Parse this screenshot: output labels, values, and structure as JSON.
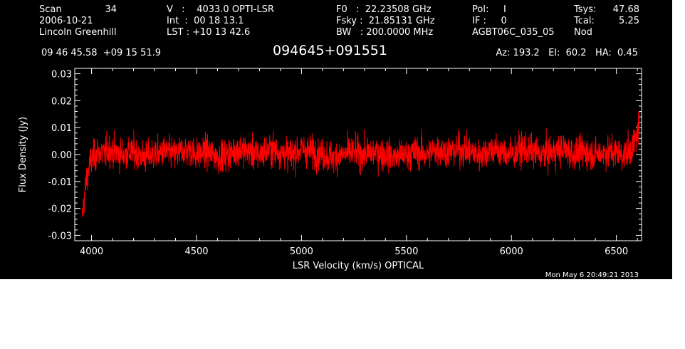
{
  "header": {
    "scan_label": "Scan",
    "scan_value": "34",
    "date": "2006-10-21",
    "observer": "Lincoln Greenhill",
    "velocity": "V   :    4033.0 OPTI-LSR",
    "int_time": "Int  :  00 18 13.1",
    "lst": "LST : +10 13 42.6",
    "f0": "F0   :  22.23508 GHz",
    "fsky": "Fsky :  21.85131 GHz",
    "bw": "BW   : 200.0000 MHz",
    "pol": "Pol:     I",
    "if": "IF :     0",
    "project": "AGBT06C_035_05",
    "tsys_label": "Tsys:",
    "tsys_value": "47.68",
    "tcal_label": "Tcal:",
    "tcal_value": "5.25",
    "nod": "Nod",
    "coords": "09 46 45.58  +09 15 51.9",
    "source": "094645+091551",
    "az_el_ha": "Az: 193.2   El:  60.2   HA:  0.45",
    "timestamp": "Mon May  6 20:49:21 2013"
  },
  "colors": {
    "background": "#000000",
    "axes": "#ffffff",
    "trace": "#ff0000"
  },
  "chart_data": {
    "type": "line",
    "xlabel": "LSR Velocity (km/s) OPTICAL",
    "ylabel": "Flux Density (Jy)",
    "xlim": [
      3920,
      6620
    ],
    "ylim": [
      -0.032,
      0.032
    ],
    "x_ticks": [
      4000,
      4500,
      5000,
      5500,
      6000,
      6500
    ],
    "y_ticks": [
      -0.03,
      -0.02,
      -0.01,
      0.0,
      0.01,
      0.02,
      0.03
    ],
    "y_tick_labels": [
      "-0.03",
      "-0.02",
      "-0.01",
      "0.00",
      "0.01",
      "0.02",
      "0.03"
    ],
    "series": [
      {
        "x": [
          3955,
          3960,
          3965,
          3970,
          3975,
          3980,
          3985,
          3990,
          4000,
          4010,
          4020,
          4040,
          4060,
          4080,
          4100,
          4150,
          4200,
          4250,
          4300,
          4350,
          4400,
          4450,
          4500,
          4550,
          4600,
          4650,
          4700,
          4750,
          4800,
          4850,
          4900,
          4950,
          5000,
          5050,
          5100,
          5150,
          5200,
          5250,
          5300,
          5350,
          5400,
          5450,
          5500,
          5550,
          5600,
          5650,
          5700,
          5750,
          5800,
          5850,
          5900,
          5950,
          6000,
          6050,
          6100,
          6150,
          6200,
          6250,
          6300,
          6350,
          6400,
          6450,
          6500,
          6530,
          6560,
          6580,
          6590,
          6600,
          6610
        ],
        "y": [
          -0.024,
          -0.02,
          -0.016,
          -0.013,
          -0.01,
          -0.008,
          -0.006,
          -0.004,
          -0.002,
          -0.001,
          0.0,
          0.001,
          0.0,
          0.002,
          0.001,
          0.0,
          0.001,
          -0.001,
          0.0,
          0.001,
          0.0,
          0.002,
          0.0,
          0.001,
          -0.001,
          0.0,
          0.002,
          0.001,
          0.0,
          0.002,
          0.001,
          0.0,
          0.002,
          0.001,
          0.0,
          -0.001,
          0.0,
          0.001,
          0.0,
          0.001,
          0.0,
          -0.001,
          0.0,
          0.001,
          0.0,
          0.002,
          0.001,
          0.002,
          0.001,
          0.0,
          0.002,
          0.001,
          0.0,
          0.002,
          0.001,
          0.0,
          0.001,
          0.002,
          0.0,
          0.001,
          0.0,
          0.001,
          0.001,
          0.0,
          0.001,
          0.003,
          0.005,
          0.008,
          0.012
        ]
      }
    ]
  }
}
